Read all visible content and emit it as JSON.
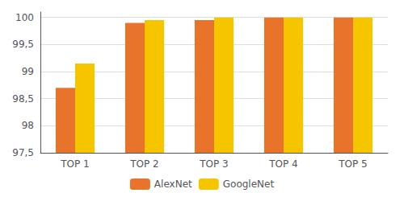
{
  "chart_data": {
    "type": "bar",
    "categories": [
      "TOP 1",
      "TOP 2",
      "TOP 3",
      "TOP 4",
      "TOP 5"
    ],
    "series": [
      {
        "name": "AlexNet",
        "color": "#E8732A",
        "values": [
          98.7,
          99.9,
          99.95,
          100.0,
          100.0
        ]
      },
      {
        "name": "GoogleNet",
        "color": "#F5C500",
        "values": [
          99.15,
          99.95,
          100.0,
          100.0,
          100.0
        ]
      }
    ],
    "ylim": [
      97.5,
      100.1
    ],
    "yticks": [
      {
        "value": 97.5,
        "label": "97,5"
      },
      98,
      {
        "value": 98.5,
        "label": "98,5"
      },
      99,
      {
        "value": 99.5,
        "label": "99,5"
      },
      100
    ],
    "grid": true,
    "legend": "bottom"
  }
}
